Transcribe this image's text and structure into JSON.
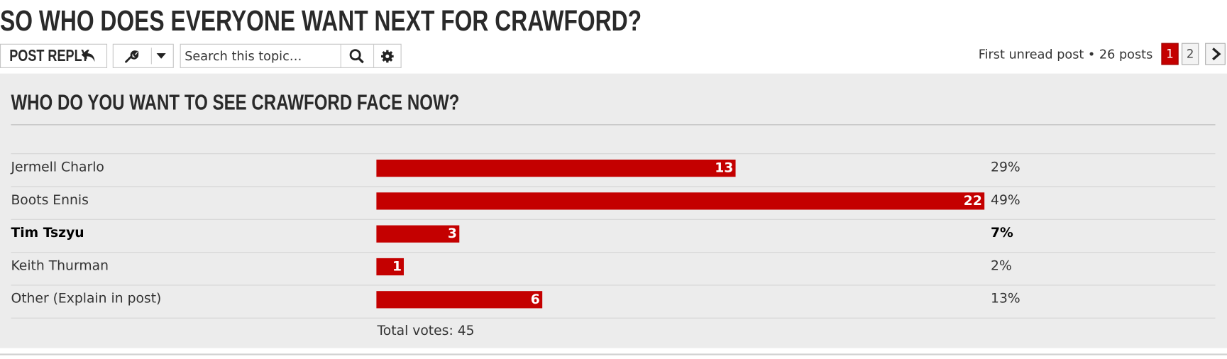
{
  "topic_title": "SO WHO DOES EVERYONE WANT NEXT FOR CRAWFORD?",
  "toolbar": {
    "post_reply": "POST REPLY",
    "search_placeholder": "Search this topic…"
  },
  "pagination": {
    "info": "First unread post • 26 posts",
    "pages": [
      1,
      2
    ]
  },
  "poll": {
    "title": "WHO DO YOU WANT TO SEE CRAWFORD FACE NOW?",
    "bar_color": "#c40000",
    "options": [
      {
        "label": "Jermell Charlo",
        "votes": 13,
        "percent": "29%",
        "voted": false
      },
      {
        "label": "Boots Ennis",
        "votes": 22,
        "percent": "49%",
        "voted": false
      },
      {
        "label": "Tim Tszyu",
        "votes": 3,
        "percent": "7%",
        "voted": true
      },
      {
        "label": "Keith Thurman",
        "votes": 1,
        "percent": "2%",
        "voted": false
      },
      {
        "label": "Other (Explain in post)",
        "votes": 6,
        "percent": "13%",
        "voted": false
      }
    ],
    "total_votes": "Total votes: 45"
  }
}
